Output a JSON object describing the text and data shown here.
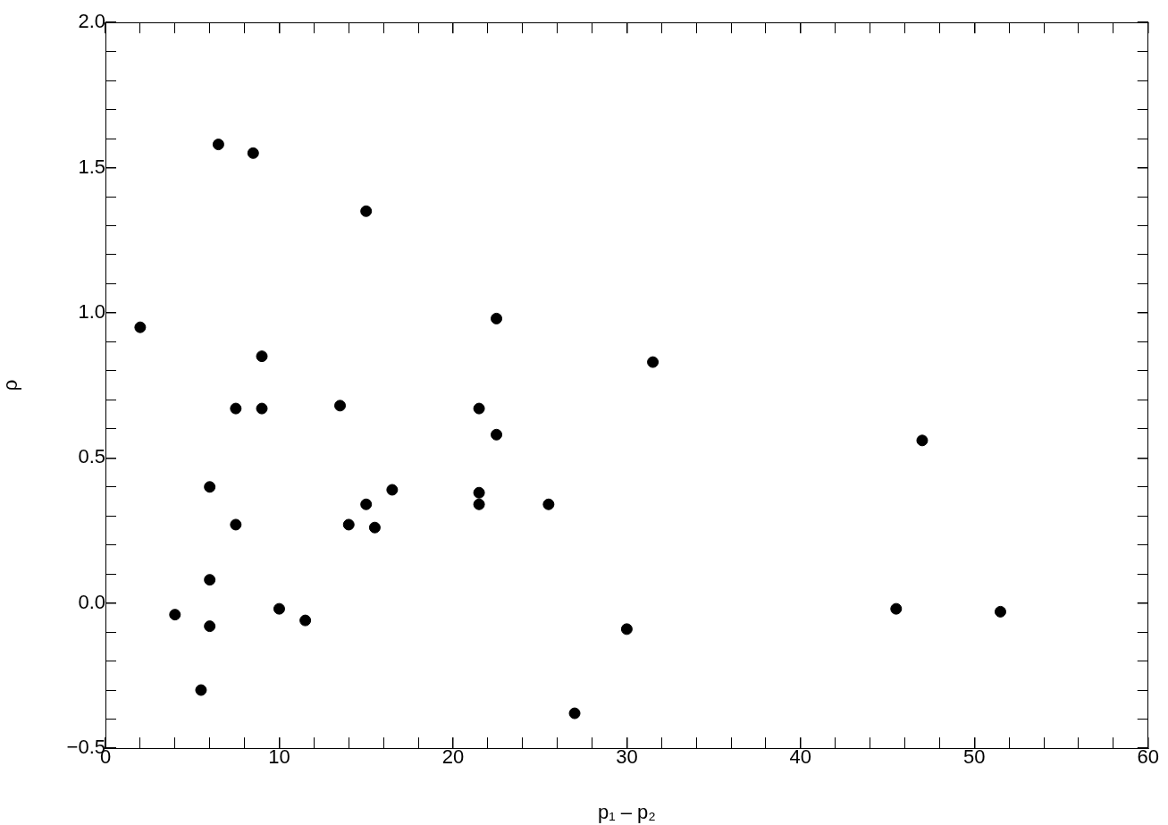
{
  "chart_data": {
    "type": "scatter",
    "xlabel": "p₁ – p₂",
    "ylabel": "ρ",
    "marker": "circle",
    "grid": false,
    "legend": false,
    "xlim": [
      0,
      60
    ],
    "xticks": [
      0,
      {
        "value": 2,
        "label": null
      },
      {
        "value": 4,
        "label": null
      },
      {
        "value": 6,
        "label": null
      },
      {
        "value": 8,
        "label": null
      },
      10,
      {
        "value": 12,
        "label": null
      },
      {
        "value": 14,
        "label": null
      },
      {
        "value": 16,
        "label": null
      },
      {
        "value": 18,
        "label": null
      },
      20,
      {
        "value": 22,
        "label": null
      },
      {
        "value": 24,
        "label": null
      },
      {
        "value": 26,
        "label": null
      },
      {
        "value": 28,
        "label": null
      },
      30,
      {
        "value": 32,
        "label": null
      },
      {
        "value": 34,
        "label": null
      },
      {
        "value": 36,
        "label": null
      },
      {
        "value": 38,
        "label": null
      },
      40,
      {
        "value": 42,
        "label": null
      },
      {
        "value": 44,
        "label": null
      },
      {
        "value": 46,
        "label": null
      },
      {
        "value": 48,
        "label": null
      },
      50,
      {
        "value": 52,
        "label": null
      },
      {
        "value": 54,
        "label": null
      },
      {
        "value": 56,
        "label": null
      },
      {
        "value": 58,
        "label": null
      },
      60
    ],
    "ylim": [
      -0.5,
      2.0
    ],
    "yticks": [
      {
        "value": -0.5,
        "label": "−0.5"
      },
      {
        "value": -0.4,
        "label": null
      },
      {
        "value": -0.3,
        "label": null
      },
      {
        "value": -0.2,
        "label": null
      },
      {
        "value": -0.1,
        "label": null
      },
      {
        "value": 0,
        "label": "0.0"
      },
      {
        "value": 0.1,
        "label": null
      },
      {
        "value": 0.2,
        "label": null
      },
      {
        "value": 0.3,
        "label": null
      },
      {
        "value": 0.4,
        "label": null
      },
      {
        "value": 0.5,
        "label": "0.5"
      },
      {
        "value": 0.6,
        "label": null
      },
      {
        "value": 0.7,
        "label": null
      },
      {
        "value": 0.8,
        "label": null
      },
      {
        "value": 0.9,
        "label": null
      },
      {
        "value": 1,
        "label": "1.0"
      },
      {
        "value": 1.1,
        "label": null
      },
      {
        "value": 1.2,
        "label": null
      },
      {
        "value": 1.3,
        "label": null
      },
      {
        "value": 1.4,
        "label": null
      },
      {
        "value": 1.5,
        "label": "1.5"
      },
      {
        "value": 1.6,
        "label": null
      },
      {
        "value": 1.7,
        "label": null
      },
      {
        "value": 1.8,
        "label": null
      },
      {
        "value": 1.9,
        "label": null
      },
      {
        "value": 2,
        "label": "2.0"
      }
    ],
    "series": [
      {
        "color": "#000000",
        "x": [
          2,
          4,
          5.5,
          6,
          6,
          6,
          6.5,
          7.5,
          7.5,
          8.5,
          9,
          9,
          10,
          11.5,
          13.5,
          14,
          15,
          15,
          15.5,
          16.5,
          21.5,
          21.5,
          21.5,
          22.5,
          22.5,
          25.5,
          27,
          30,
          31.5,
          45.5,
          47,
          51.5
        ],
        "values": [
          0.95,
          -0.04,
          -0.3,
          0.4,
          0.08,
          -0.08,
          1.58,
          0.67,
          0.27,
          1.55,
          0.85,
          0.67,
          -0.02,
          -0.06,
          0.68,
          0.27,
          1.35,
          0.34,
          0.26,
          0.39,
          0.67,
          0.38,
          0.34,
          0.98,
          0.58,
          0.34,
          -0.38,
          -0.09,
          0.83,
          -0.02,
          0.56,
          -0.03
        ]
      }
    ]
  }
}
